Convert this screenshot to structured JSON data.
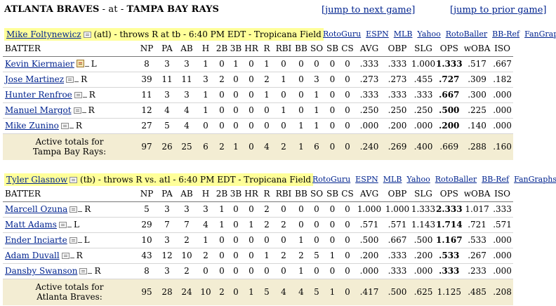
{
  "header": {
    "away": "ATLANTA BRAVES",
    "sep": " - at - ",
    "home": "TAMPA BAY RAYS",
    "jump_next": "[jump to next game]",
    "jump_prior": "[jump to prior game]"
  },
  "sections": [
    {
      "pitcher_name": "Mike Foltynewicz",
      "pitcher_info": " (atl) - throws R at tb - 6:40 PM EDT - Tropicana Field",
      "links": [
        "RotoGuru",
        "ESPN",
        "MLB",
        "Yahoo",
        "RotoBaller",
        "BB-Ref",
        "FanGraphs"
      ],
      "columns": [
        "BATTER",
        "NP",
        "PA",
        "AB",
        "H",
        "2B",
        "3B",
        "HR",
        "R",
        "RBI",
        "BB",
        "SO",
        "SB",
        "CS",
        "AVG",
        "OBP",
        "SLG",
        "OPS",
        "wOBA",
        "ISO"
      ],
      "rows": [
        {
          "name": "Kevin Kiermaier",
          "hand": "L",
          "note": true,
          "stats": [
            "8",
            "3",
            "3",
            "1",
            "0",
            "1",
            "0",
            "1",
            "0",
            "0",
            "0",
            "0",
            "0",
            ".333",
            ".333",
            "1.000",
            "1.333",
            ".517",
            ".667"
          ]
        },
        {
          "name": "Jose Martinez",
          "hand": "R",
          "note": false,
          "stats": [
            "39",
            "11",
            "11",
            "3",
            "2",
            "0",
            "0",
            "2",
            "1",
            "0",
            "3",
            "0",
            "0",
            ".273",
            ".273",
            ".455",
            ".727",
            ".309",
            ".182"
          ]
        },
        {
          "name": "Hunter Renfroe",
          "hand": "R",
          "note": false,
          "stats": [
            "11",
            "3",
            "3",
            "1",
            "0",
            "0",
            "0",
            "1",
            "0",
            "0",
            "1",
            "0",
            "0",
            ".333",
            ".333",
            ".333",
            ".667",
            ".300",
            ".000"
          ]
        },
        {
          "name": "Manuel Margot",
          "hand": "R",
          "note": false,
          "stats": [
            "12",
            "4",
            "4",
            "1",
            "0",
            "0",
            "0",
            "0",
            "1",
            "0",
            "1",
            "0",
            "0",
            ".250",
            ".250",
            ".250",
            ".500",
            ".225",
            ".000"
          ]
        },
        {
          "name": "Mike Zunino",
          "hand": "R",
          "note": false,
          "stats": [
            "27",
            "5",
            "4",
            "0",
            "0",
            "0",
            "0",
            "0",
            "0",
            "1",
            "1",
            "0",
            "0",
            ".000",
            ".200",
            ".000",
            ".200",
            ".140",
            ".000"
          ]
        }
      ],
      "totals_label_1": "Active totals for",
      "totals_label_2": "Tampa Bay Rays:",
      "totals": [
        "97",
        "26",
        "25",
        "6",
        "2",
        "1",
        "0",
        "4",
        "2",
        "1",
        "6",
        "0",
        "0",
        ".240",
        ".269",
        ".400",
        ".669",
        ".288",
        ".160"
      ]
    },
    {
      "pitcher_name": "Tyler Glasnow",
      "pitcher_info": " (tb) - throws R vs. atl - 6:40 PM EDT - Tropicana Field",
      "links": [
        "RotoGuru",
        "ESPN",
        "MLB",
        "Yahoo",
        "RotoBaller",
        "BB-Ref",
        "FanGraphs"
      ],
      "columns": [
        "BATTER",
        "NP",
        "PA",
        "AB",
        "H",
        "2B",
        "3B",
        "HR",
        "R",
        "RBI",
        "BB",
        "SO",
        "SB",
        "CS",
        "AVG",
        "OBP",
        "SLG",
        "OPS",
        "wOBA",
        "ISO"
      ],
      "rows": [
        {
          "name": "Marcell Ozuna",
          "hand": "R",
          "note": false,
          "stats": [
            "5",
            "3",
            "3",
            "3",
            "1",
            "0",
            "0",
            "2",
            "0",
            "0",
            "0",
            "0",
            "0",
            "1.000",
            "1.000",
            "1.333",
            "2.333",
            "1.017",
            ".333"
          ]
        },
        {
          "name": "Matt Adams",
          "hand": "L",
          "note": false,
          "stats": [
            "29",
            "7",
            "7",
            "4",
            "1",
            "0",
            "1",
            "2",
            "2",
            "0",
            "0",
            "0",
            "0",
            ".571",
            ".571",
            "1.143",
            "1.714",
            ".721",
            ".571"
          ]
        },
        {
          "name": "Ender Inciarte",
          "hand": "L",
          "note": false,
          "stats": [
            "10",
            "3",
            "2",
            "1",
            "0",
            "0",
            "0",
            "0",
            "0",
            "1",
            "0",
            "0",
            "0",
            ".500",
            ".667",
            ".500",
            "1.167",
            ".533",
            ".000"
          ]
        },
        {
          "name": "Adam Duvall",
          "hand": "R",
          "note": false,
          "stats": [
            "43",
            "12",
            "10",
            "2",
            "0",
            "0",
            "0",
            "1",
            "2",
            "2",
            "5",
            "1",
            "0",
            ".200",
            ".333",
            ".200",
            ".533",
            ".267",
            ".000"
          ]
        },
        {
          "name": "Dansby Swanson",
          "hand": "R",
          "note": false,
          "stats": [
            "8",
            "3",
            "2",
            "0",
            "0",
            "0",
            "0",
            "0",
            "0",
            "1",
            "0",
            "0",
            "0",
            ".000",
            ".333",
            ".000",
            ".333",
            ".233",
            ".000"
          ]
        }
      ],
      "totals_label_1": "Active totals for",
      "totals_label_2": "Atlanta Braves:",
      "totals": [
        "95",
        "28",
        "24",
        "10",
        "2",
        "0",
        "1",
        "5",
        "4",
        "4",
        "5",
        "1",
        "0",
        ".417",
        ".500",
        ".625",
        "1.125",
        ".485",
        ".208"
      ]
    }
  ]
}
